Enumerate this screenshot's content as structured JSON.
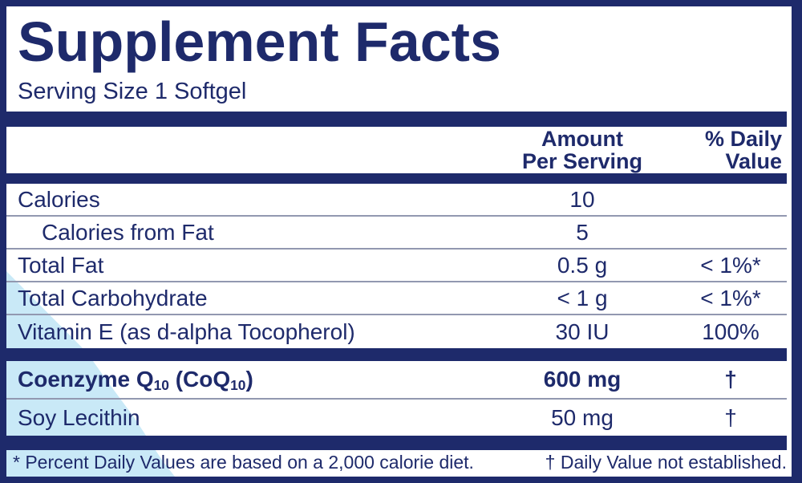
{
  "colors": {
    "navy": "#1e2a6b",
    "light_blue": "#c9e9f7",
    "separator": "#9298b0"
  },
  "header": {
    "title": "Supplement Facts",
    "serving_size": "Serving Size 1 Softgel"
  },
  "table": {
    "columns": {
      "amount_line1": "Amount",
      "amount_line2": "Per Serving",
      "daily_value_line1": "% Daily",
      "daily_value_line2": "Value"
    },
    "rows": [
      {
        "name": "calories",
        "parts": [
          {
            "t": "Calories"
          }
        ],
        "amount": "10",
        "dv": "",
        "indent": false,
        "bold": false,
        "sep": true
      },
      {
        "name": "calories-from-fat",
        "parts": [
          {
            "t": "Calories from Fat"
          }
        ],
        "amount": "5",
        "dv": "",
        "indent": true,
        "bold": false,
        "sep": true
      },
      {
        "name": "total-fat",
        "parts": [
          {
            "t": "Total Fat"
          }
        ],
        "amount": "0.5 g",
        "dv": "< 1%*",
        "indent": false,
        "bold": false,
        "sep": true
      },
      {
        "name": "total-carbohydrate",
        "parts": [
          {
            "t": "Total Carbohydrate"
          }
        ],
        "amount": "< 1 g",
        "dv": "< 1%*",
        "indent": false,
        "bold": false,
        "sep": true
      },
      {
        "name": "vitamin-e",
        "parts": [
          {
            "t": "Vitamin E (as d-alpha Tocopherol)"
          }
        ],
        "amount": "30 IU",
        "dv": "100%",
        "indent": false,
        "bold": false,
        "sep": false
      },
      {
        "divider": true
      },
      {
        "name": "coenzyme-q10",
        "parts": [
          {
            "t": "Coenzyme Q"
          },
          {
            "t": "10",
            "sub": true
          },
          {
            "t": " (CoQ"
          },
          {
            "t": "10",
            "sub": true
          },
          {
            "t": ")"
          }
        ],
        "amount": "600 mg",
        "dv": "†",
        "indent": false,
        "bold": true,
        "sep": true,
        "tall": "tall"
      },
      {
        "name": "soy-lecithin",
        "parts": [
          {
            "t": "Soy Lecithin"
          }
        ],
        "amount": "50 mg",
        "dv": "†",
        "indent": false,
        "bold": false,
        "sep": false,
        "tall": "tall2"
      }
    ]
  },
  "footnotes": {
    "percent": "* Percent Daily Values are based on a 2,000 calorie diet.",
    "dagger": "† Daily Value not established."
  }
}
